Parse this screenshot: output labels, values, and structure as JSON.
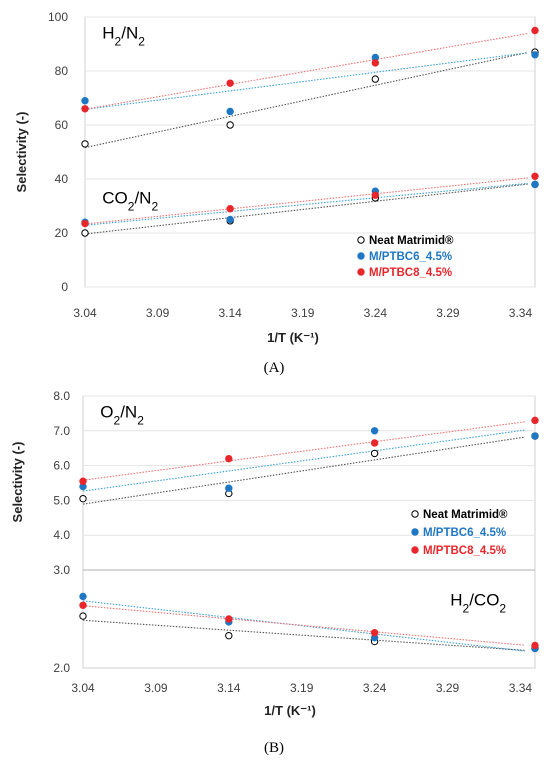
{
  "chart_data": [
    {
      "panel_id": "A",
      "type": "scatter",
      "panel_label": "(A)",
      "xlabel": "1/T (K⁻¹)",
      "ylabel": "Selectivity  (-)",
      "xlim": [
        3.04,
        3.35
      ],
      "ylim": [
        0,
        100
      ],
      "xticks": [
        "3.04",
        "3.09",
        "3.14",
        "3.19",
        "3.24",
        "3.29",
        "3.34"
      ],
      "yticks": [
        "0",
        "20",
        "40",
        "60",
        "80",
        "100"
      ],
      "annotations": [
        {
          "base": "H",
          "sub1": "2",
          "mid": "/N",
          "sub2": "2",
          "x": 3.045,
          "y": 92
        },
        {
          "base": "CO",
          "sub1": "2",
          "mid": "/N",
          "sub2": "2",
          "x": 3.045,
          "y": 31
        }
      ],
      "legend": {
        "position": "lower-right",
        "entries": [
          {
            "label": "Neat Matrimid®",
            "marker": "open-circle",
            "color": "#000000"
          },
          {
            "label": "M/PTBC6_4.5%",
            "marker": "filled-circle",
            "color": "#1f77c4"
          },
          {
            "label": "M/PTBC8_4.5%",
            "marker": "filled-circle",
            "color": "#e8262b"
          }
        ]
      },
      "series": [
        {
          "name": "Neat Matrimid®",
          "group": "H2/N2",
          "color": "#000000",
          "filled": false,
          "line_color": "#555555",
          "x": [
            3.04,
            3.14,
            3.24,
            3.35
          ],
          "y": [
            53,
            60,
            77,
            87
          ]
        },
        {
          "name": "M/PTBC6_4.5%",
          "group": "H2/N2",
          "color": "#1f77c4",
          "filled": true,
          "line_color": "#3aa0d8",
          "x": [
            3.04,
            3.14,
            3.24,
            3.35
          ],
          "y": [
            69,
            65,
            85,
            86
          ]
        },
        {
          "name": "M/PTBC8_4.5%",
          "group": "H2/N2",
          "color": "#e8262b",
          "filled": true,
          "line_color": "#f07070",
          "x": [
            3.04,
            3.14,
            3.24,
            3.35
          ],
          "y": [
            66,
            75.5,
            83,
            95
          ]
        },
        {
          "name": "Neat Matrimid®",
          "group": "CO2/N2",
          "color": "#000000",
          "filled": false,
          "line_color": "#555555",
          "x": [
            3.04,
            3.14,
            3.24,
            3.35
          ],
          "y": [
            20,
            24.5,
            33,
            38
          ]
        },
        {
          "name": "M/PTBC6_4.5%",
          "group": "CO2/N2",
          "color": "#1f77c4",
          "filled": true,
          "line_color": "#3aa0d8",
          "x": [
            3.04,
            3.14,
            3.24,
            3.35
          ],
          "y": [
            24,
            25,
            35.5,
            38
          ]
        },
        {
          "name": "M/PTBC8_4.5%",
          "group": "CO2/N2",
          "color": "#e8262b",
          "filled": true,
          "line_color": "#f07070",
          "x": [
            3.04,
            3.14,
            3.24,
            3.35
          ],
          "y": [
            23.5,
            29,
            34,
            41
          ]
        }
      ]
    },
    {
      "panel_id": "B",
      "type": "scatter",
      "panel_label": "(B)",
      "xlabel": "1/T (K⁻¹)",
      "ylabel": "Selectivity  (-)",
      "xlim": [
        3.04,
        3.35
      ],
      "ylim_top": [
        3.0,
        8.0
      ],
      "ylim_bottom": [
        2.0,
        3.0
      ],
      "axis_break": true,
      "xticks": [
        "3.04",
        "3.09",
        "3.14",
        "3.19",
        "3.24",
        "3.29",
        "3.34"
      ],
      "yticks_top": [
        "4.0",
        "5.0",
        "6.0",
        "7.0",
        "8.0"
      ],
      "yticks_bottom": [
        "2.0",
        "3.0"
      ],
      "annotations": [
        {
          "base": "O",
          "sub1": "2",
          "mid": "/N",
          "sub2": "2",
          "panel": "top",
          "x": 3.045,
          "y": 7.55
        },
        {
          "base": "H",
          "sub1": "2",
          "mid": "/CO",
          "sub2": "2",
          "panel": "bottom",
          "x": 3.285,
          "y": 2.7
        }
      ],
      "legend": {
        "position": "right",
        "entries": [
          {
            "label": "Neat Matrimid®",
            "marker": "open-circle",
            "color": "#000000"
          },
          {
            "label": "M/PTBC6_4.5%",
            "marker": "filled-circle",
            "color": "#1f77c4"
          },
          {
            "label": "M/PTBC8_4.5%",
            "marker": "filled-circle",
            "color": "#e8262b"
          }
        ]
      },
      "series": [
        {
          "name": "Neat Matrimid®",
          "group": "O2/N2",
          "panel": "top",
          "color": "#000000",
          "filled": false,
          "line_color": "#555555",
          "x": [
            3.04,
            3.14,
            3.24,
            3.35
          ],
          "y": [
            5.05,
            5.2,
            6.35,
            6.85
          ]
        },
        {
          "name": "M/PTBC6_4.5%",
          "group": "O2/N2",
          "panel": "top",
          "color": "#1f77c4",
          "filled": true,
          "line_color": "#3aa0d8",
          "x": [
            3.04,
            3.14,
            3.24,
            3.35
          ],
          "y": [
            5.4,
            5.35,
            7.0,
            6.85
          ]
        },
        {
          "name": "M/PTBC8_4.5%",
          "group": "O2/N2",
          "panel": "top",
          "color": "#e8262b",
          "filled": true,
          "line_color": "#f07070",
          "x": [
            3.04,
            3.14,
            3.24,
            3.35
          ],
          "y": [
            5.55,
            6.2,
            6.65,
            7.3
          ]
        },
        {
          "name": "Neat Matrimid®",
          "group": "H2/CO2",
          "panel": "bottom",
          "color": "#000000",
          "filled": false,
          "line_color": "#555555",
          "x": [
            3.04,
            3.14,
            3.24,
            3.35
          ],
          "y": [
            2.53,
            2.33,
            2.27,
            2.2
          ]
        },
        {
          "name": "M/PTBC6_4.5%",
          "group": "H2/CO2",
          "panel": "bottom",
          "color": "#1f77c4",
          "filled": true,
          "line_color": "#3aa0d8",
          "x": [
            3.04,
            3.14,
            3.24,
            3.35
          ],
          "y": [
            2.73,
            2.47,
            2.31,
            2.2
          ]
        },
        {
          "name": "M/PTBC8_4.5%",
          "group": "H2/CO2",
          "panel": "bottom",
          "color": "#e8262b",
          "filled": true,
          "line_color": "#f07070",
          "x": [
            3.04,
            3.14,
            3.24,
            3.35
          ],
          "y": [
            2.64,
            2.5,
            2.36,
            2.23
          ]
        }
      ]
    }
  ]
}
